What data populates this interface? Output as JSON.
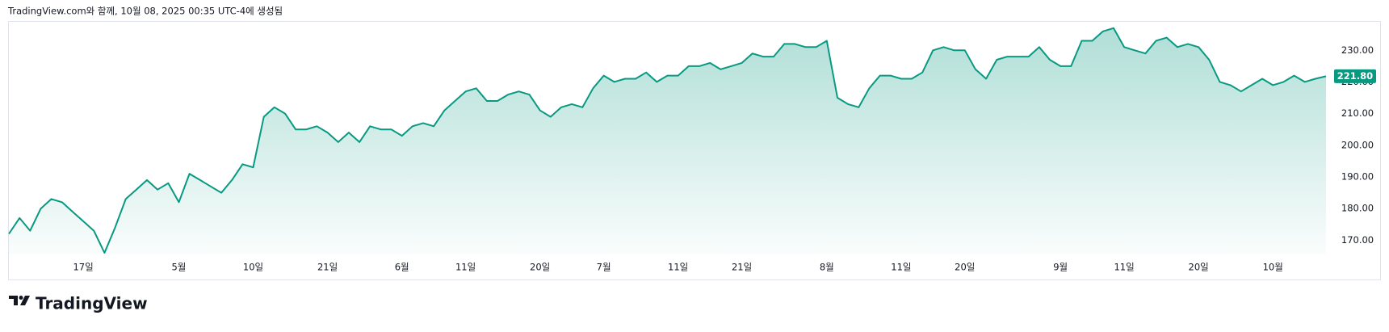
{
  "header": {
    "caption": "TradingView.com와 함께, 10월 08, 2025 00:35 UTC-4에 생성됨"
  },
  "footer": {
    "logo": "TradingView"
  },
  "chart_data": {
    "type": "area",
    "color": "#089981",
    "grid": false,
    "categories": [
      null,
      null,
      null,
      null,
      null,
      null,
      null,
      "17일",
      null,
      null,
      null,
      null,
      null,
      null,
      null,
      null,
      "5월",
      null,
      null,
      null,
      null,
      null,
      null,
      "10일",
      null,
      null,
      null,
      null,
      null,
      null,
      "21일",
      null,
      null,
      null,
      null,
      null,
      null,
      "6월",
      null,
      null,
      null,
      null,
      null,
      "11일",
      null,
      null,
      null,
      null,
      null,
      null,
      "20일",
      null,
      null,
      null,
      null,
      null,
      "7월",
      null,
      null,
      null,
      null,
      null,
      null,
      "11일",
      null,
      null,
      null,
      null,
      null,
      "21일",
      null,
      null,
      null,
      null,
      null,
      null,
      null,
      "8월",
      null,
      null,
      null,
      null,
      null,
      null,
      "11일",
      null,
      null,
      null,
      null,
      null,
      "20일",
      null,
      null,
      null,
      null,
      null,
      null,
      null,
      null,
      "9월",
      null,
      null,
      null,
      null,
      null,
      "11일",
      null,
      null,
      null,
      null,
      null,
      null,
      "20일",
      null,
      null,
      null,
      null,
      null,
      null,
      "10월",
      null,
      null,
      null,
      null,
      null
    ],
    "values": [
      172,
      177,
      173,
      180,
      183,
      182,
      179,
      176,
      173,
      166,
      174,
      183,
      186,
      189,
      186,
      188,
      182,
      191,
      189,
      187,
      185,
      189,
      194,
      193,
      209,
      212,
      210,
      205,
      205,
      206,
      204,
      201,
      204,
      201,
      206,
      205,
      205,
      203,
      206,
      207,
      206,
      211,
      214,
      217,
      218,
      214,
      214,
      216,
      217,
      216,
      211,
      209,
      212,
      213,
      212,
      218,
      222,
      220,
      221,
      221,
      223,
      220,
      222,
      222,
      225,
      225,
      226,
      224,
      225,
      226,
      229,
      228,
      228,
      232,
      232,
      231,
      231,
      233,
      215,
      213,
      212,
      218,
      222,
      222,
      221,
      221,
      223,
      230,
      231,
      230,
      230,
      224,
      221,
      227,
      228,
      228,
      228,
      231,
      227,
      225,
      225,
      233,
      233,
      236,
      237,
      231,
      230,
      229,
      233,
      234,
      231,
      232,
      231,
      227,
      220,
      219,
      217,
      219,
      221,
      219,
      220,
      222,
      220,
      221,
      221.8
    ],
    "last_value_label": "221.80",
    "ylim": [
      165.5,
      239
    ],
    "yticks": [
      {
        "value": 170,
        "label": "170.00"
      },
      {
        "value": 180,
        "label": "180.00"
      },
      {
        "value": 190,
        "label": "190.00"
      },
      {
        "value": 200,
        "label": "200.00"
      },
      {
        "value": 210,
        "label": "210.00"
      },
      {
        "value": 220,
        "label": "220.00"
      },
      {
        "value": 230,
        "label": "230.00"
      }
    ]
  }
}
